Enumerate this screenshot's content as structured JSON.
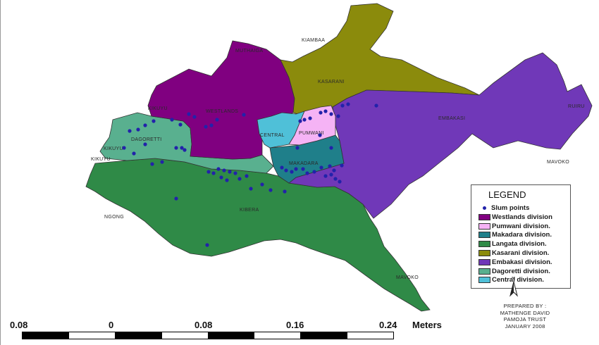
{
  "colors": {
    "westlands": "#800080",
    "pumwani": "#f5b3f5",
    "makadara": "#1f7f8a",
    "langata": "#2f8a47",
    "kasarani": "#8b8b0c",
    "embakasi": "#7038b8",
    "dagoretti": "#59b08f",
    "central": "#4fc0d8",
    "slum_points": "#2222aa",
    "scale_dark": "#000000",
    "scale_light": "#ffffff"
  },
  "labels": {
    "kiambaa": "KIAMBAA",
    "kasarani": "KASARANI",
    "muthaiga": "MUTHAIGA",
    "westlands": "WESTLANDS",
    "kikuyu_top": "KIKUYU",
    "dagoretti": "DAGORETTI",
    "kikuyu_left": "KIKUYU",
    "kikuyu_side": "KIKUYU",
    "central": "CENTRAL",
    "pumwani": "PUMWANI",
    "makadara": "MAKADARA",
    "embakasi": "EMBAKASI",
    "ruiru": "RUIRU",
    "mavoko_east": "MAVOKO",
    "ngong": "NGONG",
    "kibera": "KIBERA",
    "mavoko_south": "MAVOKO"
  },
  "legend": {
    "title": "LEGEND",
    "items": [
      {
        "label": "Slum points",
        "kind": "dot",
        "color_key": "slum_points"
      },
      {
        "label": "Westlands division",
        "kind": "box",
        "color_key": "westlands"
      },
      {
        "label": "Pumwani division.",
        "kind": "box",
        "color_key": "pumwani"
      },
      {
        "label": "Makadara division.",
        "kind": "box",
        "color_key": "makadara"
      },
      {
        "label": "Langata division.",
        "kind": "box",
        "color_key": "langata"
      },
      {
        "label": "Kasarani division.",
        "kind": "box",
        "color_key": "kasarani"
      },
      {
        "label": "Embakasi division.",
        "kind": "box",
        "color_key": "embakasi"
      },
      {
        "label": "Dagoretti division.",
        "kind": "box",
        "color_key": "dagoretti"
      },
      {
        "label": "Central division.",
        "kind": "box",
        "color_key": "central"
      }
    ]
  },
  "north": {
    "letter": "N"
  },
  "credit": {
    "line1": "PREPARED BY :",
    "line2": "MATHENGE DAVID",
    "line3": "PAMOJA TRUST",
    "line4": "JANUARY 2008"
  },
  "scale": {
    "ticks": [
      "0.08",
      "0",
      "0.08",
      "0.16",
      "0.24"
    ],
    "unit": "Meters"
  }
}
